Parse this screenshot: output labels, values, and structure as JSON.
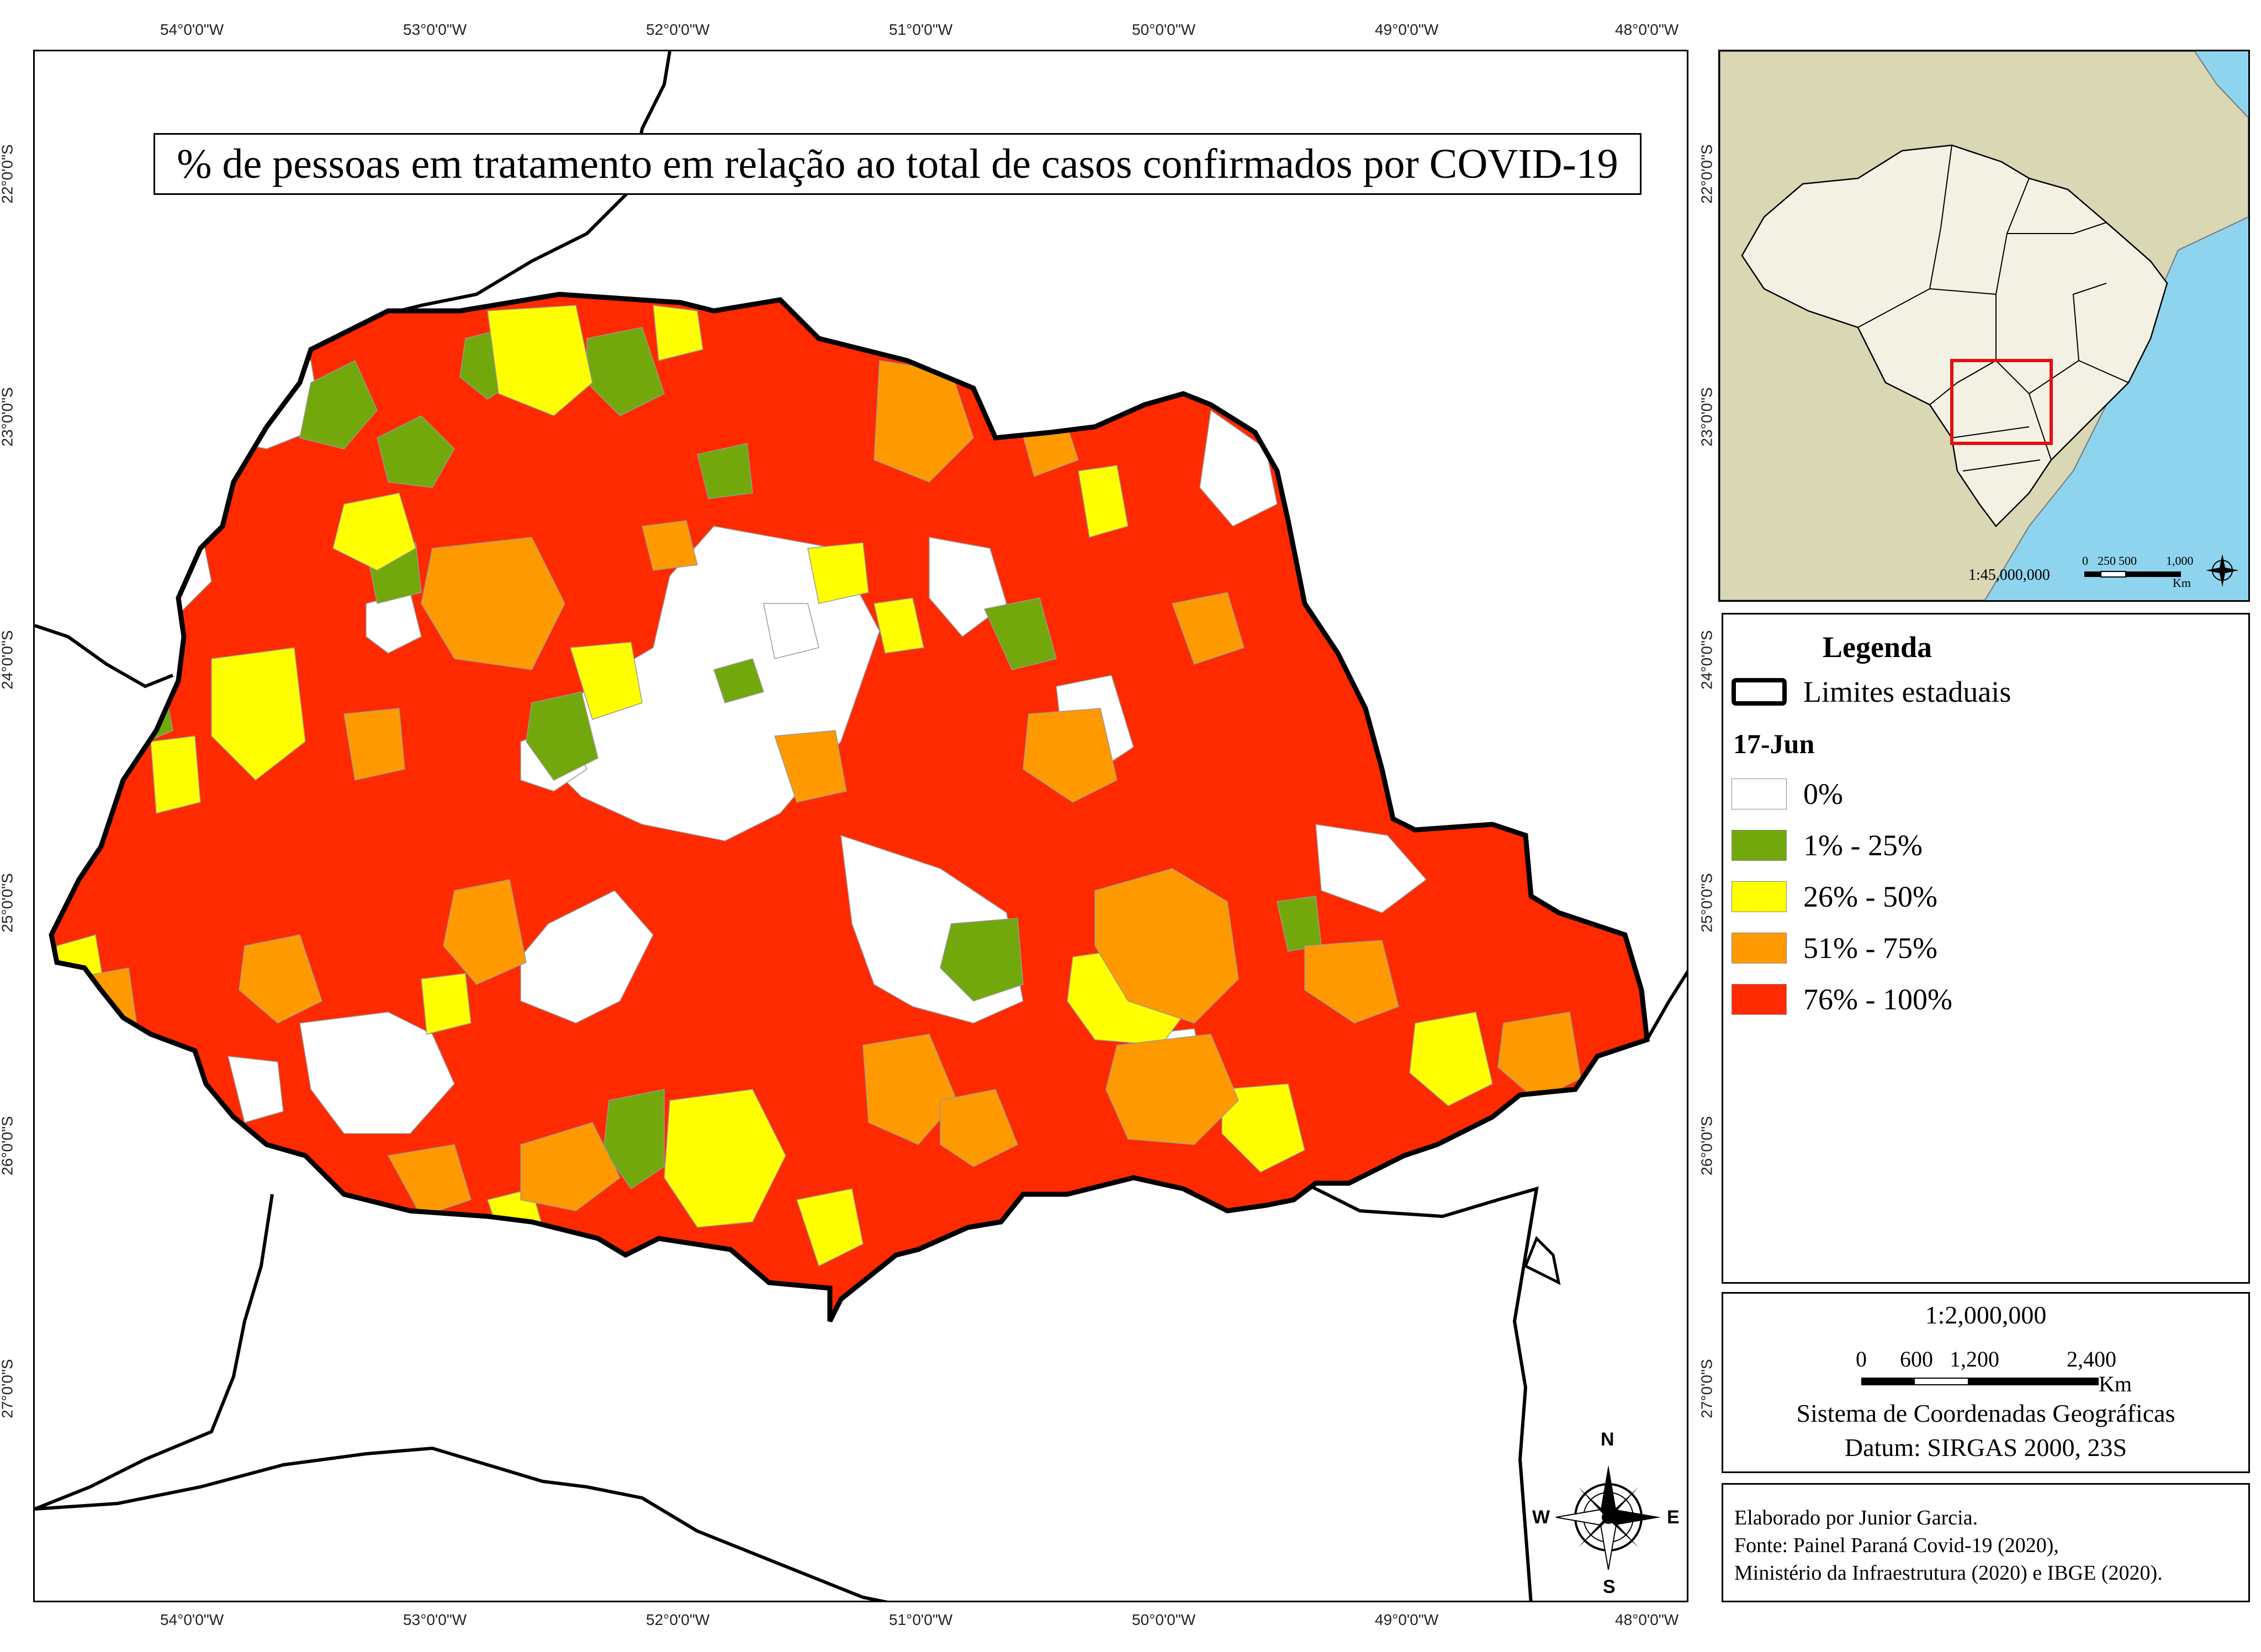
{
  "title": "% de pessoas em tratamento em relação ao total de casos confirmados por COVID-19",
  "graticule": {
    "longitudes": [
      "54°0'0\"W",
      "53°0'0\"W",
      "52°0'0\"W",
      "51°0'0\"W",
      "50°0'0\"W",
      "49°0'0\"W",
      "48°0'0\"W"
    ],
    "latitudes": [
      "22°0'0\"S",
      "23°0'0\"S",
      "24°0'0\"S",
      "25°0'0\"S",
      "26°0'0\"S",
      "27°0'0\"S"
    ]
  },
  "inset": {
    "scale_ratio": "1:45,000,000",
    "scale_ticks": [
      "0",
      "250",
      "500",
      "1,000"
    ],
    "scale_unit": "Km",
    "colors": {
      "ocean": "#8ed4ee",
      "land": "#d9d7b4",
      "brazil": "#f3f1e4",
      "highlight": "#e01010"
    }
  },
  "legend": {
    "title": "Legenda",
    "boundary_label": "Limites estaduais",
    "date_label": "17-Jun",
    "classes": [
      {
        "label": "0%",
        "color": "#ffffff"
      },
      {
        "label": "1% - 25%",
        "color": "#72a80c"
      },
      {
        "label": "26% - 50%",
        "color": "#ffff00"
      },
      {
        "label": "51% - 75%",
        "color": "#ff9900"
      },
      {
        "label": "76% - 100%",
        "color": "#ff2a00"
      }
    ]
  },
  "scale": {
    "ratio": "1:2,000,000",
    "ticks": [
      "0",
      "600",
      "1,200",
      "2,400"
    ],
    "unit": "Km",
    "crs_line1": "Sistema de Coordenadas Geográficas",
    "crs_line2": "Datum: SIRGAS 2000, 23S"
  },
  "credits": {
    "line1": "Elaborado por Junior Garcia.",
    "line2": "Fonte: Painel Paraná Covid-19 (2020),",
    "line3": "Ministério da Infraestrutura (2020) e IBGE (2020)."
  },
  "north_arrow": {
    "n": "N",
    "s": "S",
    "e": "E",
    "w": "W"
  }
}
